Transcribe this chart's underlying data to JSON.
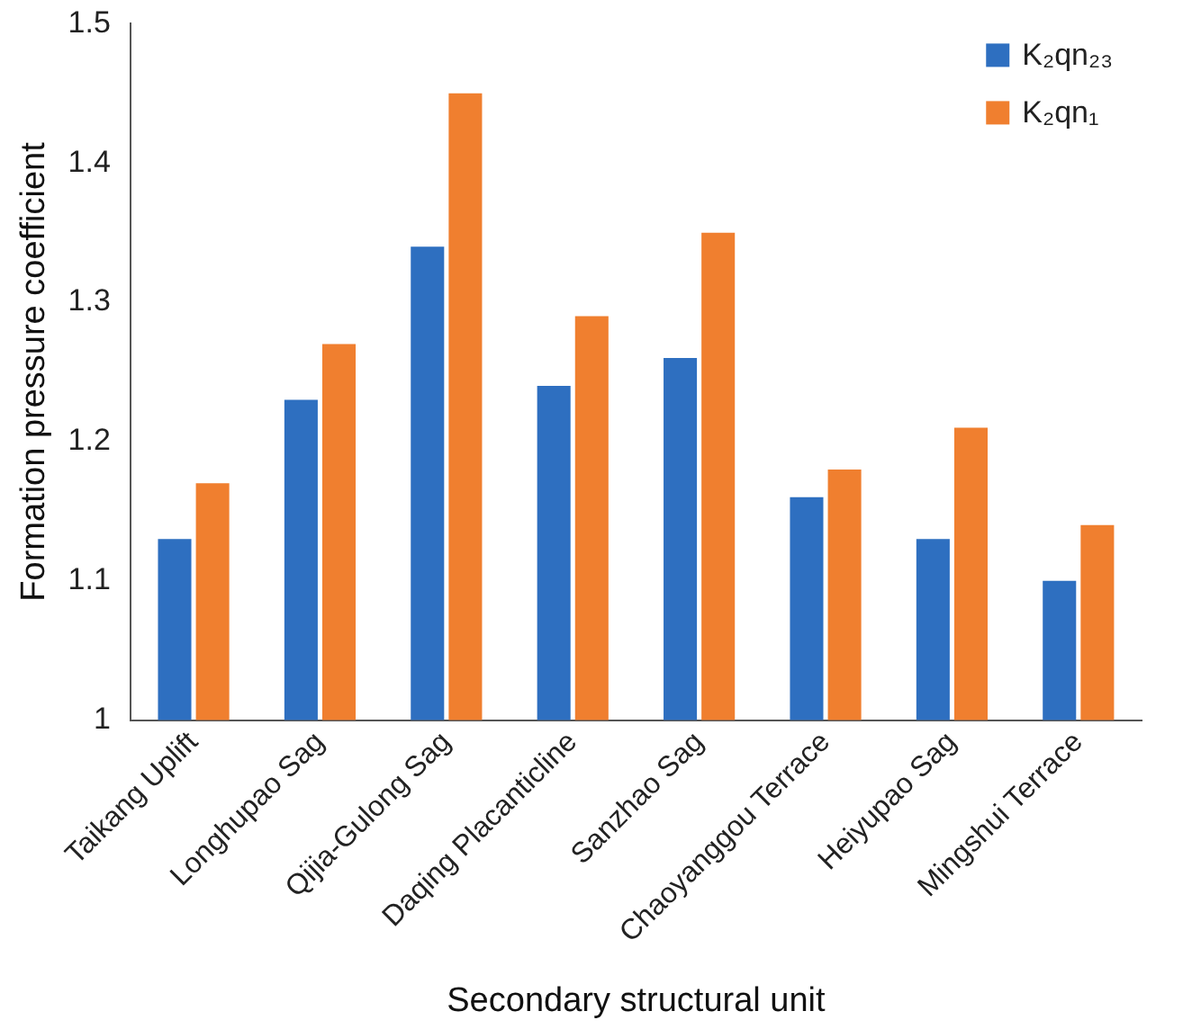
{
  "chart_data": {
    "type": "bar",
    "xlabel": "Secondary structural unit",
    "ylabel": "Formation pressure coefficient",
    "categories": [
      "Taikang Uplift",
      "Longhupao Sag",
      "Qijia-Gulong Sag",
      "Daqing Placanticline",
      "Sanzhao Sag",
      "Chaoyanggou Terrace",
      "Heiyupao Sag",
      "Mingshui Terrace"
    ],
    "series": [
      {
        "name": "K₂qn₂₃",
        "color": "#2e6fc0",
        "values": [
          1.13,
          1.23,
          1.34,
          1.24,
          1.26,
          1.16,
          1.13,
          1.1
        ]
      },
      {
        "name": "K₂qn₁",
        "color": "#f07f2f",
        "values": [
          1.17,
          1.27,
          1.45,
          1.29,
          1.35,
          1.18,
          1.21,
          1.14
        ]
      }
    ],
    "ylim": [
      1,
      1.5
    ],
    "yticks": [
      {
        "value": 1,
        "label": "1"
      },
      1.1,
      1.2,
      1.3,
      1.4,
      1.5
    ],
    "grid": false,
    "legend": "top right"
  }
}
